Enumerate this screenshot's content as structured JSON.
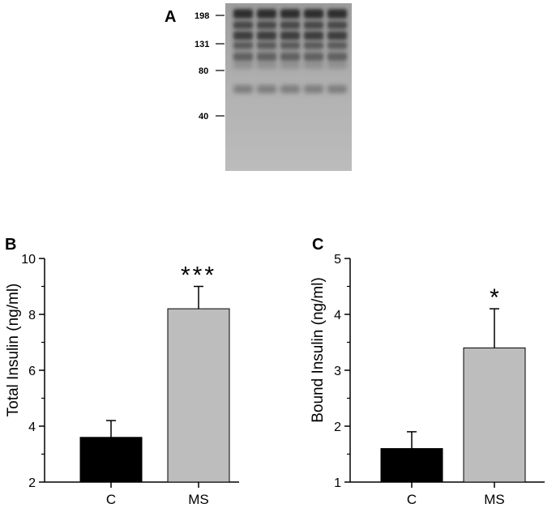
{
  "panel_a": {
    "label": "A",
    "markers": [
      "198",
      "131",
      "80",
      "40"
    ],
    "lanes": 5
  },
  "chart_data": [
    {
      "type": "bar",
      "panel": "B",
      "categories": [
        "C",
        "MS"
      ],
      "values": [
        3.6,
        8.2
      ],
      "errors": [
        0.6,
        0.8
      ],
      "colors": [
        "#000000",
        "#bdbdbd"
      ],
      "significance": [
        "",
        "***"
      ],
      "ylabel": "Total Insulin (ng/ml)",
      "xlabel": "",
      "ylim": [
        2,
        10
      ],
      "yticks": [
        2,
        4,
        6,
        8,
        10
      ]
    },
    {
      "type": "bar",
      "panel": "C",
      "categories": [
        "C",
        "MS"
      ],
      "values": [
        1.6,
        3.4
      ],
      "errors": [
        0.3,
        0.7
      ],
      "colors": [
        "#000000",
        "#bdbdbd"
      ],
      "significance": [
        "",
        "*"
      ],
      "ylabel": "Bound Insulin (ng/ml)",
      "xlabel": "",
      "ylim": [
        1,
        5
      ],
      "yticks": [
        1,
        2,
        3,
        4,
        5
      ]
    }
  ]
}
